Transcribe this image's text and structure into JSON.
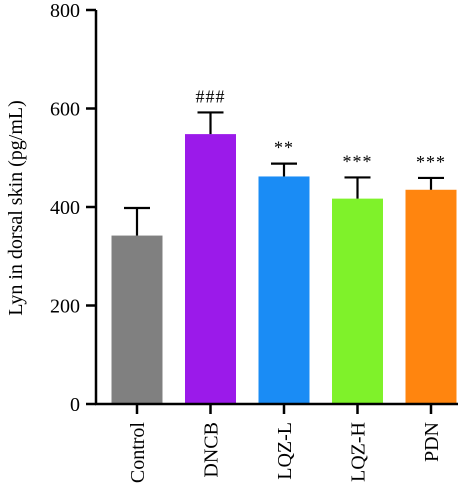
{
  "chart_data": {
    "type": "bar",
    "categories": [
      "Control",
      "DNCB",
      "LQZ-L",
      "LQZ-H",
      "PDN"
    ],
    "values": [
      342,
      548,
      462,
      417,
      435
    ],
    "errors": [
      56,
      44,
      26,
      43,
      24
    ],
    "annotations": [
      "",
      "###",
      "**",
      "***",
      "***"
    ],
    "colors": [
      "#808080",
      "#9B1AEA",
      "#1A8CF5",
      "#7FF22A",
      "#FF850F"
    ],
    "ylabel": "Lyn in dorsal skin (pg/mL)",
    "xlabel": "",
    "ylim": [
      0,
      800
    ],
    "yticks": [
      0,
      200,
      400,
      600,
      800
    ],
    "grid": false,
    "legend": "none"
  }
}
